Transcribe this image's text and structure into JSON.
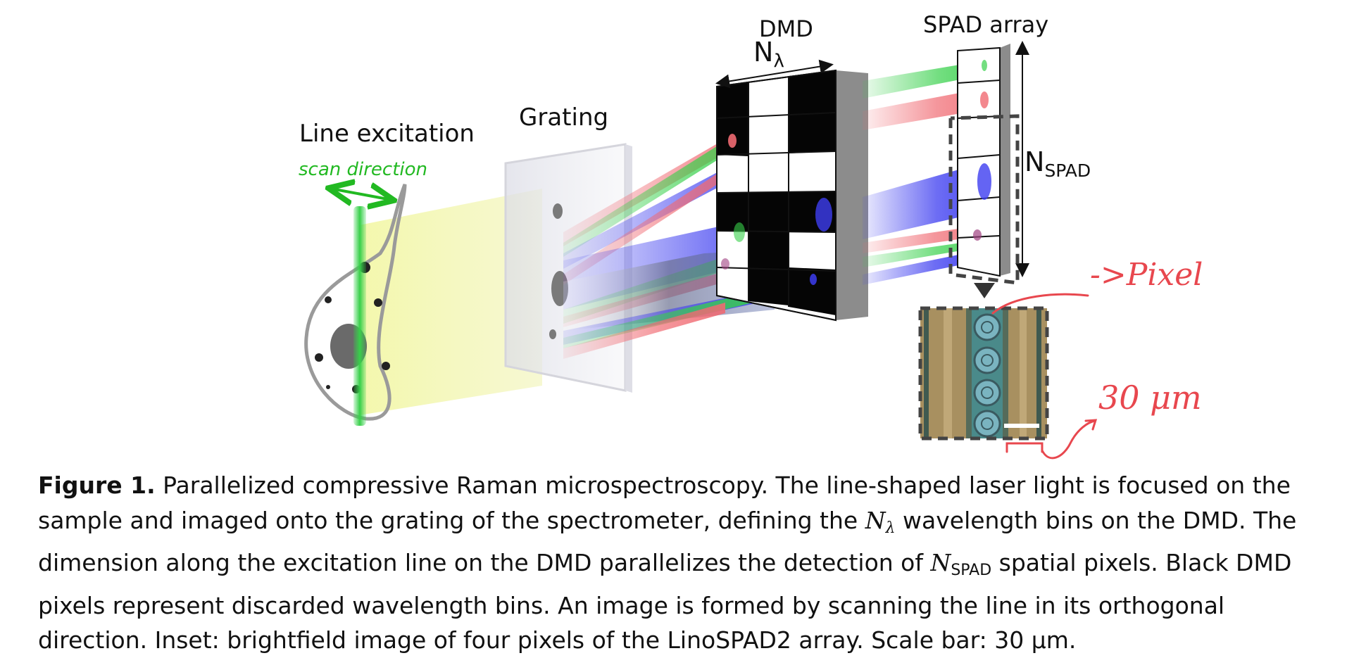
{
  "figure": {
    "labels": {
      "line_excitation": "Line excitation",
      "scan_direction": "scan direction",
      "grating": "Grating",
      "dmd": "DMD",
      "n_lambda_base": "N",
      "n_lambda_sub": "λ",
      "spad_array": "SPAD array",
      "n_spad_base": "N",
      "n_spad_sub": "SPAD"
    },
    "annotations": {
      "pixel_note": "->Pixel",
      "scale_note": "30 μm"
    },
    "colors": {
      "green_beam": "#37d04a",
      "red_beam": "#f06a72",
      "blue_beam": "#3d3df0",
      "yellow_beam": "#ecef9a",
      "handwriting": "#e8474e",
      "scan_arrow": "#22b922"
    }
  },
  "caption": {
    "label": "Figure 1.",
    "part1": " Parallelized compressive Raman microspectroscopy. The line-shaped laser light is focused on the sample and imaged onto the grating of the spectrometer, defining the ",
    "n_lambda_base": "N",
    "n_lambda_sub": "λ",
    "part2": " wavelength bins on the DMD. The dimension along the excitation line on the DMD parallelizes the detection of ",
    "n_spad_base": "N",
    "n_spad_sub": "SPAD",
    "part3": " spatial pixels. Black DMD pixels represent discarded wavelength bins. An image is formed by scanning the line in its orthogonal direction. Inset: brightfield image of four pixels of the LinoSPAD2 array. Scale bar: 30 μm."
  }
}
